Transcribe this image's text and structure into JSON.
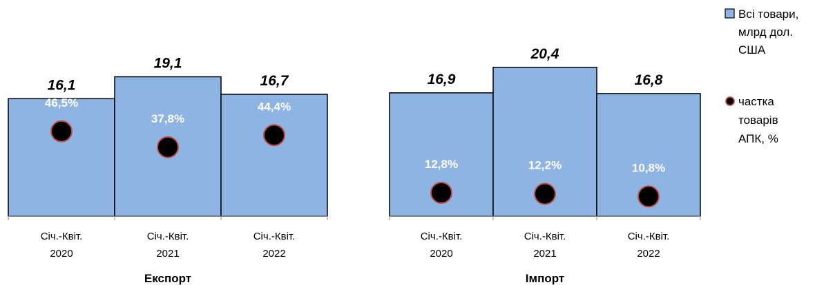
{
  "chart_data": [
    {
      "type": "bar",
      "title": "Експорт",
      "categories": [
        [
          "Січ.-Квіт.",
          "2020"
        ],
        [
          "Січ.-Квіт.",
          "2021"
        ],
        [
          "Січ.-Квіт.",
          "2022"
        ]
      ],
      "series": [
        {
          "name": "Всі товари, млрд дол. США",
          "type": "bar",
          "values": [
            16.1,
            19.1,
            16.7
          ],
          "labels": [
            "16,1",
            "19,1",
            "16,7"
          ]
        },
        {
          "name": "частка товарів АПК, %",
          "type": "scatter",
          "values": [
            46.5,
            37.8,
            44.4
          ],
          "labels": [
            "46,5%",
            "37,8%",
            "44,4%"
          ]
        }
      ],
      "ylim": [
        0,
        25
      ],
      "share_ylim": [
        0,
        100
      ],
      "grid": false
    },
    {
      "type": "bar",
      "title": "Імпорт",
      "categories": [
        [
          "Січ.-Квіт.",
          "2020"
        ],
        [
          "Січ.-Квіт.",
          "2021"
        ],
        [
          "Січ.-Квіт.",
          "2022"
        ]
      ],
      "series": [
        {
          "name": "Всі товари, млрд дол. США",
          "type": "bar",
          "values": [
            16.9,
            20.4,
            16.8
          ],
          "labels": [
            "16,9",
            "20,4",
            "16,8"
          ]
        },
        {
          "name": "частка товарів АПК, %",
          "type": "scatter",
          "values": [
            12.8,
            12.2,
            10.8
          ],
          "labels": [
            "12,8%",
            "12,2%",
            "10,8%"
          ]
        }
      ],
      "ylim": [
        0,
        25
      ],
      "share_ylim": [
        0,
        100
      ],
      "grid": false
    }
  ],
  "legend": {
    "placement": "right",
    "items": [
      {
        "lines": [
          "Всі товари,",
          "млрд дол.",
          "США"
        ],
        "marker": "square"
      },
      {
        "lines": [
          "частка",
          "товарів",
          "АПК, %"
        ],
        "marker": "circle"
      }
    ]
  },
  "colors": {
    "bar_fill": "#8EB4E3",
    "bar_stroke": "#000000",
    "marker_fill": "#000000",
    "marker_stroke": "#C0504D",
    "axis": "#8C8C8C"
  }
}
